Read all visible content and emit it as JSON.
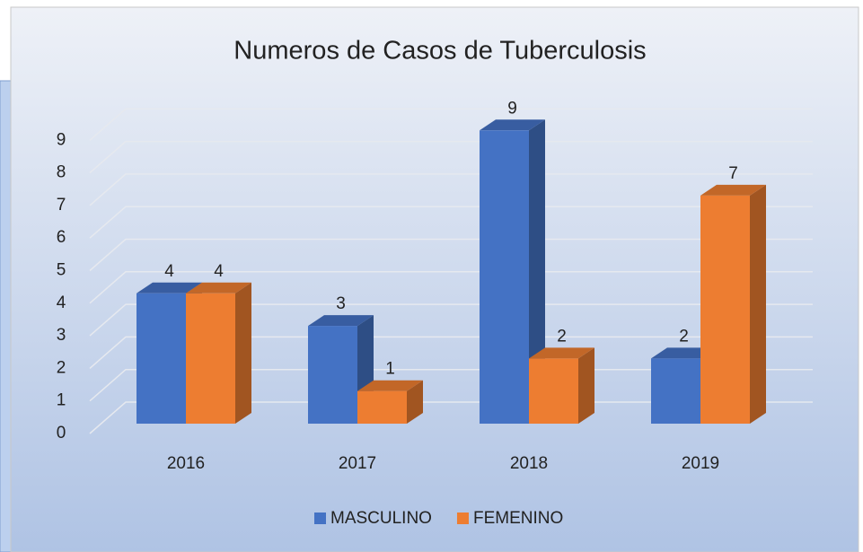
{
  "chart_data": {
    "type": "bar3d",
    "title": "Numeros de Casos de Tuberculosis",
    "categories": [
      "2016",
      "2017",
      "2018",
      "2019"
    ],
    "series": [
      {
        "name": "MASCULINO",
        "color": "#4472c4",
        "values": [
          4,
          3,
          9,
          2
        ]
      },
      {
        "name": "FEMENINO",
        "color": "#ed7d31",
        "values": [
          4,
          1,
          2,
          7
        ]
      }
    ],
    "ylim": [
      0,
      9
    ],
    "yticks": [
      0,
      1,
      2,
      3,
      4,
      5,
      6,
      7,
      8,
      9
    ],
    "grid": true,
    "legend": "bottom"
  }
}
